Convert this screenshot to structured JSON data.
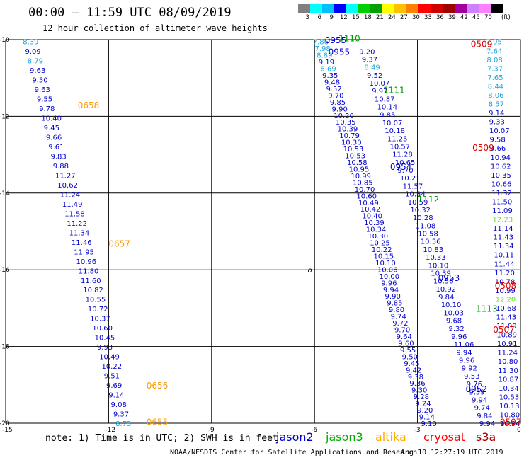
{
  "header": {
    "title": "00:00 – 11:59 UTC 08/09/2019",
    "subtitle": "12 hour collection of altimeter wave heights"
  },
  "legend": {
    "unit": "(ft)",
    "ticks": [
      "3",
      "6",
      "9",
      "12",
      "15",
      "18",
      "21",
      "24",
      "27",
      "30",
      "33",
      "36",
      "39",
      "42",
      "45",
      "70"
    ],
    "colors": [
      "#808080",
      "#00ffff",
      "#00bfff",
      "#0000ff",
      "#00ffff",
      "#00d000",
      "#00a000",
      "#ffff00",
      "#ffc000",
      "#ff8000",
      "#ff0000",
      "#d00000",
      "#a00000",
      "#a000a0",
      "#d080ff",
      "#ff80ff",
      "#000000"
    ]
  },
  "axes": {
    "x_labels": [
      "-15",
      "-12",
      "-9",
      "-6",
      "-3",
      "0"
    ],
    "y_labels": [
      "-10",
      "-12",
      "-14",
      "-16",
      "-18",
      "-20"
    ]
  },
  "map_symbol": "o",
  "track_labels": [
    {
      "text": "0658",
      "lon": -12.9,
      "lat": -11.7,
      "color": "#ff9900"
    },
    {
      "text": "0657",
      "lon": -12.0,
      "lat": -15.3,
      "color": "#ff9900"
    },
    {
      "text": "0656",
      "lon": -10.9,
      "lat": -19.0,
      "color": "#ff9900"
    },
    {
      "text": "0655",
      "lon": -10.9,
      "lat": -19.95,
      "color": "#ff9900"
    },
    {
      "text": "0955",
      "lon": -5.7,
      "lat": -10.0,
      "color": "#0000cc"
    },
    {
      "text": "0955",
      "lon": -5.6,
      "lat": -10.3,
      "color": "#0000cc"
    },
    {
      "text": "0954",
      "lon": -3.8,
      "lat": -13.3,
      "color": "#0000cc"
    },
    {
      "text": "0953",
      "lon": -2.4,
      "lat": -16.2,
      "color": "#0000cc"
    },
    {
      "text": "0952",
      "lon": -1.6,
      "lat": -19.1,
      "color": "#0000cc"
    },
    {
      "text": "1110",
      "lon": -5.3,
      "lat": -9.95,
      "color": "#009900"
    },
    {
      "text": "1111",
      "lon": -4.0,
      "lat": -11.3,
      "color": "#009900"
    },
    {
      "text": "1112",
      "lon": -3.0,
      "lat": -14.15,
      "color": "#009900"
    },
    {
      "text": "1113",
      "lon": -1.3,
      "lat": -17.0,
      "color": "#009900"
    },
    {
      "text": "0509",
      "lon": -1.45,
      "lat": -10.1,
      "color": "#dd0000"
    },
    {
      "text": "0509",
      "lon": -1.4,
      "lat": -12.8,
      "color": "#dd0000"
    },
    {
      "text": "0508",
      "lon": -0.75,
      "lat": -16.4,
      "color": "#dd0000"
    },
    {
      "text": "0507",
      "lon": -0.8,
      "lat": -17.55,
      "color": "#dd0000"
    },
    {
      "text": "0507",
      "lon": -0.6,
      "lat": -19.95,
      "color": "#dd0000"
    }
  ],
  "tracks": [
    {
      "name": "altika",
      "color": "#0000cc",
      "x_start": -14.5,
      "x_end": -11.8,
      "y_start": -10.05,
      "y_end": -20.0,
      "values": [
        "8.39",
        "9.09",
        "8.79",
        "9.63",
        "9.50",
        "9.63",
        "9.55",
        "9.78",
        "10.40",
        "9.45",
        "9.66",
        "9.61",
        "9.83",
        "9.88",
        "11.27",
        "10.62",
        "11.24",
        "11.49",
        "11.58",
        "11.22",
        "11.34",
        "11.46",
        "11.95",
        "10.96",
        "11.80",
        "11.60",
        "10.82",
        "10.55",
        "10.72",
        "10.37",
        "10.60",
        "10.45",
        "9.93",
        "10.49",
        "10.22",
        "9.51",
        "9.69",
        "9.14",
        "9.08",
        "9.37",
        "8.75"
      ]
    },
    {
      "name": "jason2",
      "color": "#0000cc",
      "x_start": -6.05,
      "x_end": -2.9,
      "y_start": -10.05,
      "y_end": -20.0,
      "values": [
        "7.86",
        "7.98",
        "8.89",
        "9.19",
        "8.69",
        "9.35",
        "9.48",
        "9.52",
        "9.70",
        "9.85",
        "9.90",
        "10.20",
        "10.35",
        "10.39",
        "10.79",
        "10.30",
        "10.53",
        "10.53",
        "10.58",
        "10.95",
        "10.99",
        "10.85",
        "10.70",
        "10.60",
        "10.49",
        "10.42",
        "10.40",
        "10.39",
        "10.34",
        "10.30",
        "10.25",
        "10.22",
        "10.15",
        "10.10",
        "10.06",
        "10.00",
        "9.96",
        "9.94",
        "9.90",
        "9.85",
        "9.80",
        "9.74",
        "9.72",
        "9.70",
        "9.64",
        "9.60",
        "9.55",
        "9.50",
        "9.45",
        "9.42",
        "9.38",
        "9.36",
        "9.30",
        "9.28",
        "9.24",
        "9.20",
        "9.14",
        "9.10"
      ]
    },
    {
      "name": "jason2b",
      "color": "#0000cc",
      "x_start": -4.7,
      "x_end": -1.2,
      "y_start": -10.3,
      "y_end": -20.0,
      "values": [
        "9.20",
        "9.37",
        "8.49",
        "9.52",
        "10.07",
        "9.97",
        "10.87",
        "10.14",
        "9.85",
        "10.07",
        "10.18",
        "11.25",
        "10.57",
        "11.28",
        "10.65",
        "9.70",
        "10.21",
        "11.57",
        "10.34",
        "10.59",
        "10.32",
        "10.28",
        "11.08",
        "10.58",
        "10.36",
        "10.83",
        "10.33",
        "10.10",
        "10.39",
        "10.56",
        "10.92",
        "9.84",
        "10.10",
        "10.03",
        "9.68",
        "9.32",
        "9.96",
        "11.06",
        "9.94",
        "9.96",
        "9.92",
        "9.53",
        "9.76",
        "9.39",
        "9.94",
        "9.74",
        "9.84",
        "9.94"
      ]
    },
    {
      "name": "cryosat",
      "color": "#0000cc",
      "x_start": -1.0,
      "x_end": -0.6,
      "y_start": -10.05,
      "y_end": -20.0,
      "values": [
        "7.95",
        "7.64",
        "8.08",
        "7.37",
        "7.65",
        "8.44",
        "8.06",
        "8.57",
        "9.14",
        "9.33",
        "10.07",
        "9.58",
        "9.66",
        "10.94",
        "10.62",
        "10.35",
        "10.66",
        "11.32",
        "11.50",
        "11.09",
        "12.23",
        "11.14",
        "11.43",
        "11.34",
        "10.11",
        "11.44",
        "11.20",
        "10.78",
        "10.99",
        "12.20",
        "10.68",
        "11.43",
        "11.09",
        "10.89",
        "10.91",
        "11.24",
        "10.80",
        "11.30",
        "10.87",
        "10.34",
        "10.53",
        "10.13",
        "10.80",
        "10.94"
      ]
    }
  ],
  "note": "note: 1) Time is in UTC; 2) SWH is in feet",
  "satellites": [
    {
      "name": "jason2",
      "color": "#0000cc"
    },
    {
      "name": "jason3",
      "color": "#00aa00"
    },
    {
      "name": "altika",
      "color": "#ffaa00"
    },
    {
      "name": "cryosat",
      "color": "#ff0000"
    },
    {
      "name": "s3a",
      "color": "#aa0000"
    }
  ],
  "credit": "NOAA/NESDIS Center for Satellite Applications and Research",
  "timestamp": "Aug 10 12:27:19 UTC 2019"
}
